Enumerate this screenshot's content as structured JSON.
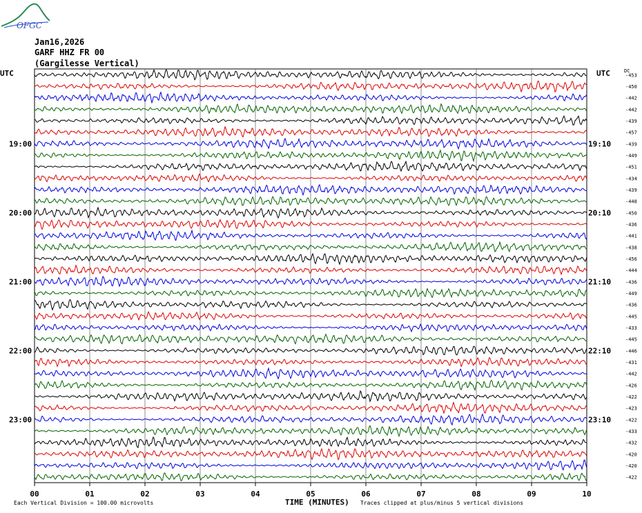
{
  "logo": {
    "text": "OFGC"
  },
  "header": {
    "date": "Jan16,2026",
    "station": "GARF HHZ FR 00",
    "location": "(Gargilesse Vertical)"
  },
  "chart_data": {
    "type": "line",
    "title": "",
    "xlabel": "TIME (MINUTES)",
    "xlim": [
      0,
      10
    ],
    "x_ticks": [
      "00",
      "01",
      "02",
      "03",
      "04",
      "05",
      "06",
      "07",
      "08",
      "09",
      "10"
    ],
    "left_axis_label": "UTC",
    "right_axis_label": "UTC",
    "dc_label": "DC",
    "left_time_labels": [
      {
        "label": "19:00",
        "row": 6
      },
      {
        "label": "20:00",
        "row": 12
      },
      {
        "label": "21:00",
        "row": 18
      },
      {
        "label": "22:00",
        "row": 24
      },
      {
        "label": "23:00",
        "row": 30
      }
    ],
    "right_time_labels": [
      {
        "label": "19:10",
        "row": 6
      },
      {
        "label": "20:10",
        "row": 12
      },
      {
        "label": "21:10",
        "row": 18
      },
      {
        "label": "22:10",
        "row": 24
      },
      {
        "label": "23:10",
        "row": 30
      }
    ],
    "trace_colors": [
      "#000000",
      "#e00000",
      "#0000e0",
      "#006400"
    ],
    "dc_offsets": [
      -453,
      -450,
      -442,
      -442,
      -439,
      -457,
      -439,
      -449,
      -451,
      -434,
      -439,
      -448,
      -450,
      -436,
      -441,
      -438,
      -456,
      -444,
      -436,
      -449,
      -436,
      -445,
      -433,
      -445,
      -446,
      -431,
      -442,
      -426,
      -422,
      -423,
      -422,
      -433,
      -432,
      -420,
      -420,
      -422
    ],
    "grid": true
  },
  "footer": {
    "scale_note": "Each Vertical Division =  100.00 microvolts",
    "clip_note": "Traces clipped at plus/minus 5 vertical divisions"
  }
}
